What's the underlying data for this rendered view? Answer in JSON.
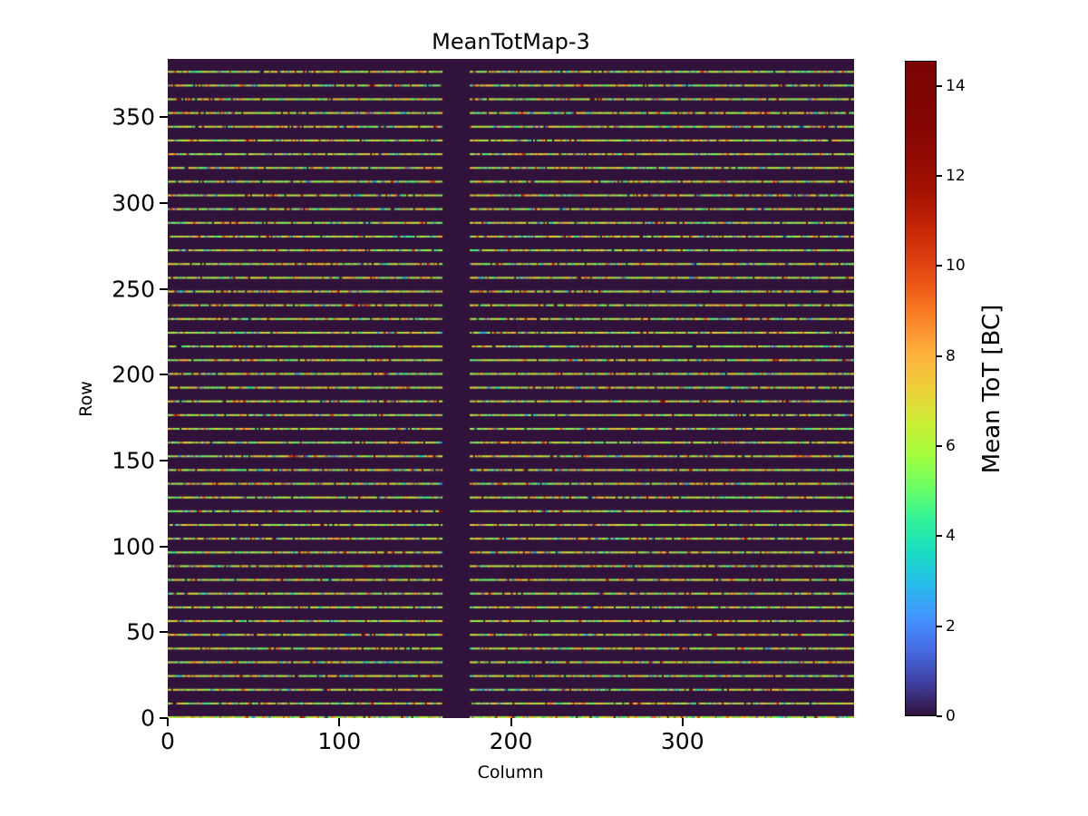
{
  "figure": {
    "background": "#ffffff",
    "text_color": "#000000"
  },
  "chart_data": {
    "type": "heatmap",
    "title": "MeanTotMap-3",
    "xlabel": "Column",
    "ylabel": "Row",
    "colorbar_label": "Mean ToT [BC]",
    "n_cols": 400,
    "n_rows": 384,
    "xlim": [
      0,
      400
    ],
    "ylim": [
      0,
      384
    ],
    "vmin": 0,
    "vmax": 14.56,
    "x_ticks": [
      0,
      100,
      200,
      300
    ],
    "y_ticks": [
      0,
      50,
      100,
      150,
      200,
      250,
      300,
      350
    ],
    "colorbar_ticks": [
      0,
      2,
      4,
      6,
      8,
      10,
      12,
      14
    ],
    "grid": false,
    "legend": null,
    "pattern": {
      "description": "Pixel-detector mean time-over-threshold map: thin horizontal stripes of hit pixels every 8 rows (rows 0,8,...,376) over a zero-value dark background; vertical dead region spanning columns 160-175; stripe values mostly 4-8 BC (green/teal/yellow) with scattered cyan/blue lows, orange/red highs and rare dead (0) pixels",
      "stripe_row_period": 8,
      "stripe_rows_start": 0,
      "stripe_row_count": 48,
      "gap_col_start": 160,
      "gap_col_end": 176,
      "background_value": 0,
      "frac_dead": 0.02,
      "frac_blue_low": 0.08,
      "frac_red_high": 0.04,
      "frac_orange": 0.12,
      "frac_yellow": 0.26,
      "teal_green_range": [
        4.2,
        6.8
      ],
      "yellow_range": [
        6.8,
        8.2
      ],
      "orange_range": [
        8.0,
        10.0
      ],
      "red_range": [
        10.0,
        14.5
      ],
      "blue_range": [
        1.5,
        3.7
      ],
      "seed": 1337
    },
    "colormap": {
      "name": "turbo",
      "background_hex": "#30123b",
      "stops": [
        [
          0.0,
          48,
          18,
          59
        ],
        [
          0.05,
          64,
          64,
          162
        ],
        [
          0.1,
          70,
          107,
          227
        ],
        [
          0.15,
          66,
          148,
          255
        ],
        [
          0.2,
          40,
          188,
          235
        ],
        [
          0.25,
          24,
          221,
          194
        ],
        [
          0.3,
          50,
          242,
          152
        ],
        [
          0.35,
          109,
          254,
          98
        ],
        [
          0.4,
          164,
          252,
          60
        ],
        [
          0.45,
          205,
          236,
          52
        ],
        [
          0.5,
          238,
          207,
          58
        ],
        [
          0.55,
          253,
          178,
          61
        ],
        [
          0.6,
          251,
          138,
          43
        ],
        [
          0.65,
          239,
          94,
          23
        ],
        [
          0.7,
          219,
          60,
          14
        ],
        [
          0.75,
          194,
          36,
          6
        ],
        [
          0.8,
          164,
          19,
          1
        ],
        [
          0.85,
          146,
          11,
          2
        ],
        [
          0.9,
          133,
          6,
          4
        ],
        [
          0.95,
          126,
          5,
          2
        ],
        [
          1.0,
          122,
          4,
          3
        ]
      ]
    }
  }
}
